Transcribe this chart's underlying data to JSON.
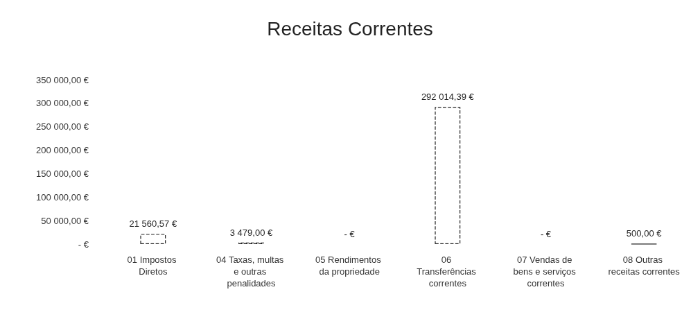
{
  "chart_data": {
    "type": "bar",
    "title": "Receitas Correntes",
    "categories": [
      "01 Impostos Diretos",
      "04 Taxas, multas e outras penalidades",
      "05 Rendimentos da propriedade",
      "06 Transferências correntes",
      "07 Vendas de bens e serviços correntes",
      "08 Outras receitas correntes"
    ],
    "values": [
      21560.57,
      3479,
      0,
      292014.39,
      0,
      500
    ],
    "value_labels": [
      "21 560,57 €",
      "3 479,00 €",
      "- €",
      "292 014,39 €",
      "- €",
      "500,00 €"
    ],
    "color": "#222222",
    "ylim": [
      0,
      350000
    ],
    "yticks": [
      {
        "value": 0,
        "label": "- €"
      },
      {
        "value": 50000,
        "label": "50 000,00 €"
      },
      {
        "value": 100000,
        "label": "100 000,00 €"
      },
      {
        "value": 150000,
        "label": "150 000,00 €"
      },
      {
        "value": 200000,
        "label": "200 000,00 €"
      },
      {
        "value": 250000,
        "label": "250 000,00 €"
      },
      {
        "value": 300000,
        "label": "300 000,00 €"
      },
      {
        "value": 350000,
        "label": "350 000,00 €"
      }
    ],
    "grid": false
  }
}
